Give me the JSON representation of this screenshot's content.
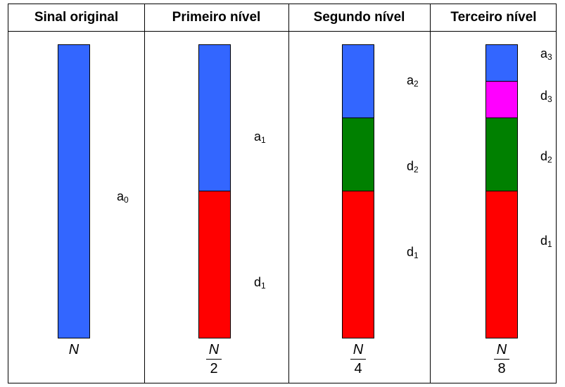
{
  "headers": [
    "Sinal original",
    "Primeiro nível",
    "Segundo nível",
    "Terceiro nível"
  ],
  "colors": {
    "approx": "#3366ff",
    "d1": "#ff0000",
    "d2": "#008000",
    "d3": "#ff00ff"
  },
  "columns": [
    {
      "label_a": {
        "base": "a",
        "sub": "0"
      },
      "n": "N",
      "den": ""
    },
    {
      "label_a": {
        "base": "a",
        "sub": "1"
      },
      "label_d1": {
        "base": "d",
        "sub": "1"
      },
      "n": "N",
      "den": "2"
    },
    {
      "label_a": {
        "base": "a",
        "sub": "2"
      },
      "label_d2": {
        "base": "d",
        "sub": "2"
      },
      "label_d1": {
        "base": "d",
        "sub": "1"
      },
      "n": "N",
      "den": "4"
    },
    {
      "label_a": {
        "base": "a",
        "sub": "3"
      },
      "label_d3": {
        "base": "d",
        "sub": "3"
      },
      "label_d2": {
        "base": "d",
        "sub": "2"
      },
      "label_d1": {
        "base": "d",
        "sub": "1"
      },
      "n": "N",
      "den": "8"
    }
  ]
}
